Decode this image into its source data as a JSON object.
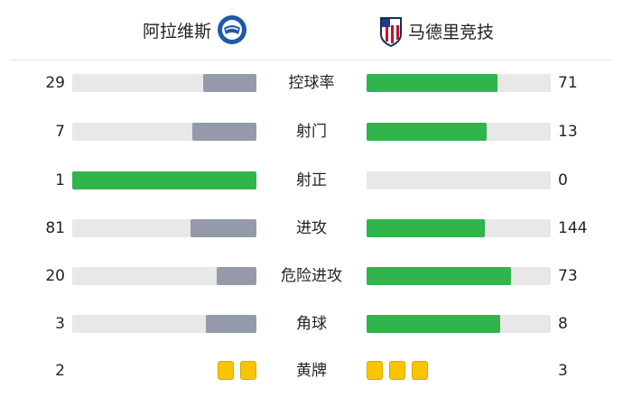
{
  "home": {
    "name": "阿拉维斯",
    "logo": "alaves-crest"
  },
  "away": {
    "name": "马德里竞技",
    "logo": "atletico-madrid-crest"
  },
  "colors": {
    "home_bar": "#949aab",
    "away_bar": "#31b44b",
    "leading_bar": "#31b44b",
    "track": "#e8e8e8",
    "yellow_card": "#f7c600"
  },
  "stats": [
    {
      "label": "控球率",
      "home": "29",
      "away": "71",
      "h": 29,
      "a": 71
    },
    {
      "label": "射门",
      "home": "7",
      "away": "13",
      "h": 7,
      "a": 13
    },
    {
      "label": "射正",
      "home": "1",
      "away": "0",
      "h": 1,
      "a": 0
    },
    {
      "label": "进攻",
      "home": "81",
      "away": "144",
      "h": 81,
      "a": 144
    },
    {
      "label": "危险进攻",
      "home": "20",
      "away": "73",
      "h": 20,
      "a": 73
    },
    {
      "label": "角球",
      "home": "3",
      "away": "8",
      "h": 3,
      "a": 8
    }
  ],
  "cards": {
    "label": "黄牌",
    "home": "2",
    "away": "3",
    "h": 2,
    "a": 3
  }
}
